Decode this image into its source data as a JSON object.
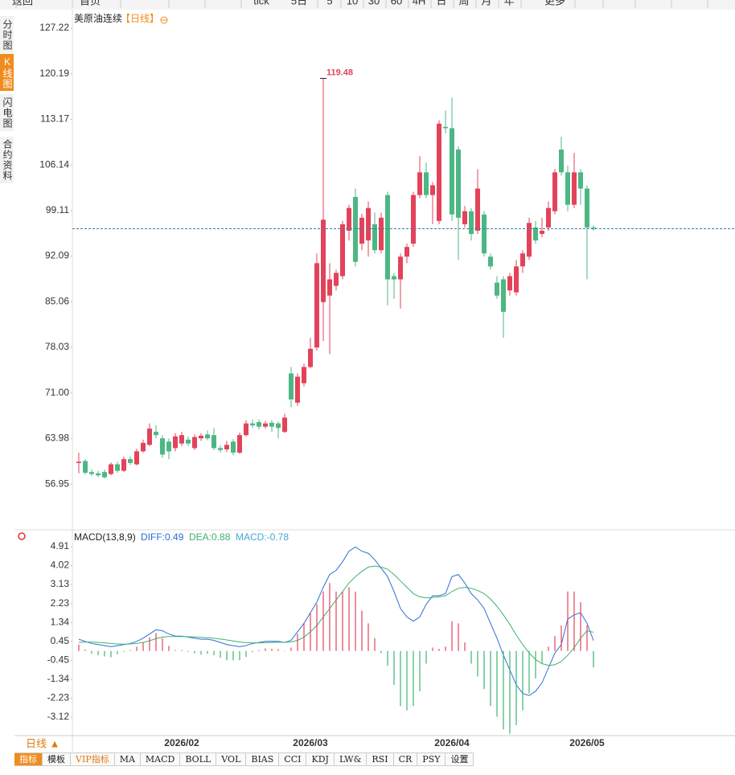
{
  "toolbar": [
    "返回",
    "首页",
    "tick",
    "5日",
    "5",
    "10",
    "30",
    "60",
    "4H",
    "日",
    "周",
    "月",
    "年",
    "更多"
  ],
  "sidebar": [
    "分时图",
    "K线图",
    "闪电图",
    "合约资料"
  ],
  "period": "日线 ▲",
  "tabs": [
    "指标",
    "模板",
    "VIP指标",
    "MA",
    "MACD",
    "BOLL",
    "VOL",
    "BIAS",
    "CCI",
    "KDJ",
    "LW&",
    "RSI",
    "CR",
    "PSY",
    "设置"
  ],
  "chart_data": [
    {
      "type": "candlestick",
      "title": "美原油连续",
      "subtitle": "【日线】",
      "up_color": "#e3435a",
      "down_color": "#4cb784",
      "ylim": [
        50.4,
        129.7
      ],
      "yticks": [
        127.22,
        120.19,
        113.17,
        106.14,
        99.11,
        92.09,
        85.06,
        78.03,
        {
          "value": 71,
          "label": "71.00"
        },
        63.98,
        56.95
      ],
      "categories": [
        null,
        null,
        null,
        null,
        null,
        null,
        null,
        null,
        null,
        null,
        null,
        null,
        null,
        null,
        null,
        null,
        "2026/02",
        null,
        null,
        null,
        null,
        null,
        null,
        null,
        null,
        null,
        null,
        null,
        null,
        null,
        null,
        null,
        null,
        null,
        null,
        null,
        "2026/03",
        null,
        null,
        null,
        null,
        null,
        null,
        null,
        null,
        null,
        null,
        null,
        null,
        null,
        null,
        null,
        null,
        null,
        null,
        null,
        null,
        null,
        "2026/04",
        null,
        null,
        null,
        null,
        null,
        null,
        null,
        null,
        null,
        null,
        null,
        null,
        null,
        null,
        null,
        null,
        null,
        null,
        null,
        null,
        "2026/05",
        null
      ],
      "open": [
        60.2,
        60.5,
        58.8,
        58.6,
        58.8,
        58.5,
        60.0,
        59.0,
        60.8,
        60.0,
        62.0,
        63.0,
        65.0,
        64.0,
        63.5,
        62.5,
        63.2,
        63.8,
        62.5,
        64.0,
        64.6,
        64.5,
        62.5,
        62.3,
        63.5,
        61.8,
        64.5,
        66.3,
        66.5,
        65.8,
        66.4,
        66.3,
        65.0,
        74.0,
        69.5,
        72.5,
        75.0,
        78.0,
        85.0,
        86.0,
        87.5,
        89.0,
        96.0,
        101.2,
        94.0,
        94.5,
        97.0,
        93.0,
        101.5,
        89.0,
        88.5,
        92.0,
        94.0,
        101.5,
        105.0,
        101.5,
        97.5,
        112.0,
        111.8,
        108.5,
        97.0,
        99.0,
        96.0,
        98.5,
        92.0,
        88.0,
        88.5,
        86.8,
        86.5,
        90.5,
        92.0,
        96.5,
        95.5,
        96.5,
        99.0,
        108.5,
        105.0,
        100.0,
        105.0,
        102.5,
        96.5
      ],
      "high": [
        61.8,
        60.8,
        59.2,
        59.0,
        59.2,
        60.3,
        60.4,
        61.2,
        61.2,
        62.4,
        63.8,
        66.3,
        66.0,
        64.5,
        64.0,
        64.8,
        65.0,
        64.3,
        64.6,
        64.8,
        65.2,
        65.6,
        62.9,
        63.6,
        63.9,
        64.9,
        66.8,
        66.9,
        66.9,
        66.7,
        66.8,
        66.6,
        67.8,
        75.0,
        74.0,
        75.5,
        79.5,
        92.5,
        119.48,
        91.0,
        90.0,
        97.5,
        100.0,
        102.5,
        98.6,
        100.5,
        98.8,
        98.8,
        102.0,
        89.5,
        92.5,
        94.0,
        102.0,
        107.5,
        106.5,
        103.5,
        113.0,
        114.5,
        116.5,
        109.0,
        99.8,
        99.5,
        105.5,
        99.0,
        92.5,
        89.0,
        89.0,
        89.5,
        91.5,
        93.0,
        98.0,
        97.5,
        98.0,
        100.5,
        105.5,
        110.5,
        106.0,
        108.0,
        105.5,
        103.0,
        96.8
      ],
      "low": [
        58.6,
        58.4,
        58.2,
        58.0,
        57.8,
        58.3,
        58.7,
        58.8,
        59.9,
        59.8,
        61.8,
        62.8,
        64.0,
        61.0,
        60.8,
        62.0,
        62.8,
        62.8,
        62.2,
        63.6,
        63.7,
        62.2,
        61.8,
        61.9,
        61.4,
        61.6,
        64.3,
        65.6,
        65.4,
        65.5,
        65.0,
        64.0,
        64.8,
        68.8,
        69.0,
        72.0,
        74.8,
        77.5,
        79.0,
        77.0,
        86.8,
        88.5,
        94.5,
        90.5,
        93.0,
        92.0,
        92.5,
        92.5,
        84.5,
        85.5,
        84.0,
        91.0,
        93.5,
        101.0,
        101.0,
        97.0,
        97.0,
        111.0,
        97.5,
        91.5,
        96.5,
        94.5,
        95.5,
        92.0,
        90.0,
        85.5,
        79.5,
        86.0,
        86.0,
        89.5,
        91.5,
        94.0,
        95.0,
        96.0,
        98.5,
        104.5,
        99.0,
        99.5,
        100.0,
        88.5,
        96.0
      ],
      "close": [
        60.4,
        58.7,
        58.5,
        58.3,
        58.0,
        60.0,
        59.0,
        60.8,
        60.2,
        62.0,
        63.3,
        65.5,
        64.5,
        61.5,
        62.0,
        64.3,
        64.5,
        63.2,
        64.2,
        64.4,
        64.0,
        62.5,
        62.2,
        63.0,
        61.8,
        64.5,
        66.3,
        66.0,
        65.8,
        66.3,
        65.8,
        65.6,
        67.2,
        70.0,
        73.5,
        75.0,
        77.8,
        91.0,
        97.7,
        88.5,
        89.5,
        97.0,
        99.5,
        91.2,
        98.0,
        99.5,
        93.0,
        98.0,
        88.5,
        88.5,
        92.0,
        93.5,
        101.5,
        105.0,
        101.5,
        103.0,
        112.5,
        111.8,
        98.5,
        98.0,
        99.0,
        95.5,
        102.5,
        92.5,
        90.5,
        86.0,
        83.5,
        89.0,
        90.5,
        92.5,
        97.2,
        94.5,
        96.0,
        99.5,
        105.0,
        105.0,
        100.0,
        105.0,
        102.5,
        96.5,
        96.3
      ]
    },
    {
      "type": "macd",
      "title": "MACD(13,8,9)",
      "ylim": [
        -3.99,
        5.67
      ],
      "yticks": [
        4.91,
        4.02,
        3.13,
        2.23,
        1.34,
        0.45,
        -0.45,
        -1.34,
        -2.23,
        -3.12
      ],
      "series": [
        {
          "name": "DIFF:0.49",
          "kind": "line",
          "color": "#2f6fd6",
          "values": [
            0.55,
            0.45,
            0.35,
            0.3,
            0.25,
            0.2,
            0.25,
            0.3,
            0.35,
            0.45,
            0.6,
            0.8,
            1.0,
            0.95,
            0.8,
            0.7,
            0.7,
            0.65,
            0.6,
            0.55,
            0.55,
            0.5,
            0.4,
            0.3,
            0.25,
            0.2,
            0.25,
            0.35,
            0.4,
            0.45,
            0.45,
            0.45,
            0.4,
            0.5,
            0.9,
            1.3,
            1.8,
            2.3,
            3.0,
            3.6,
            3.8,
            4.2,
            4.7,
            4.9,
            4.7,
            4.6,
            4.3,
            3.9,
            3.5,
            2.8,
            2.0,
            1.6,
            1.4,
            1.6,
            2.2,
            2.6,
            2.6,
            2.7,
            3.5,
            3.6,
            3.2,
            2.7,
            2.4,
            2.0,
            1.3,
            0.6,
            -0.2,
            -0.9,
            -1.6,
            -2.0,
            -2.1,
            -1.9,
            -1.5,
            -0.8,
            -0.1,
            0.3,
            1.5,
            1.7,
            1.8,
            1.3,
            0.49
          ]
        },
        {
          "name": "DEA:0.88",
          "kind": "line",
          "color": "#3cb371",
          "values": [
            0.4,
            0.42,
            0.42,
            0.4,
            0.38,
            0.35,
            0.33,
            0.32,
            0.33,
            0.35,
            0.4,
            0.48,
            0.58,
            0.65,
            0.68,
            0.68,
            0.68,
            0.67,
            0.66,
            0.64,
            0.62,
            0.6,
            0.56,
            0.52,
            0.47,
            0.42,
            0.39,
            0.38,
            0.38,
            0.39,
            0.4,
            0.41,
            0.41,
            0.42,
            0.5,
            0.65,
            0.9,
            1.2,
            1.6,
            2.0,
            2.4,
            2.8,
            3.2,
            3.5,
            3.75,
            3.95,
            4.0,
            3.95,
            3.85,
            3.6,
            3.3,
            3.0,
            2.7,
            2.55,
            2.5,
            2.52,
            2.55,
            2.6,
            2.8,
            2.95,
            3.0,
            2.95,
            2.85,
            2.7,
            2.45,
            2.1,
            1.7,
            1.25,
            0.75,
            0.3,
            -0.1,
            -0.4,
            -0.6,
            -0.68,
            -0.65,
            -0.5,
            -0.2,
            0.15,
            0.6,
            0.95,
            0.88
          ]
        },
        {
          "name": "MACD:-0.78",
          "kind": "bar",
          "color": "#45a6d8",
          "up_color": "#e3435a",
          "down_color": "#3cb371",
          "values": [
            0.3,
            0.06,
            -0.14,
            -0.2,
            -0.26,
            -0.3,
            -0.16,
            -0.04,
            0.04,
            0.2,
            0.4,
            0.64,
            0.84,
            0.6,
            0.24,
            0.04,
            0.04,
            -0.04,
            -0.12,
            -0.18,
            -0.14,
            -0.2,
            -0.32,
            -0.44,
            -0.44,
            -0.44,
            -0.28,
            -0.06,
            0.04,
            0.12,
            0.1,
            0.08,
            -0.02,
            0.16,
            0.8,
            1.3,
            1.8,
            2.2,
            2.8,
            3.2,
            2.8,
            2.8,
            3.0,
            2.8,
            1.9,
            1.3,
            0.6,
            -0.1,
            -0.7,
            -1.6,
            -2.6,
            -2.8,
            -2.6,
            -1.9,
            -0.6,
            0.16,
            0.1,
            0.2,
            1.4,
            1.3,
            0.4,
            -0.6,
            -1.2,
            -1.8,
            -2.6,
            -3.1,
            -3.7,
            -3.9,
            -3.5,
            -2.8,
            -2.0,
            -1.3,
            -0.6,
            0.2,
            0.7,
            1.2,
            2.8,
            2.8,
            2.3,
            1.2,
            -0.78
          ]
        }
      ]
    }
  ]
}
